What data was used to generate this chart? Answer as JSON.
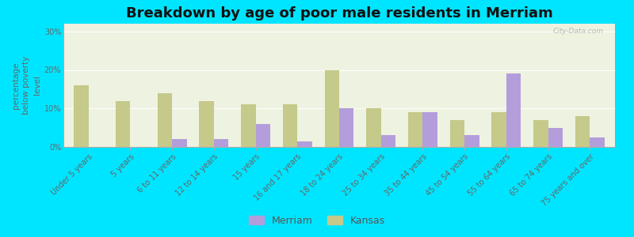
{
  "title": "Breakdown by age of poor male residents in Merriam",
  "ylabel": "percentage\nbelow poverty\nlevel",
  "categories": [
    "Under 5 years",
    "5 years",
    "6 to 11 years",
    "12 to 14 years",
    "15 years",
    "16 and 17 years",
    "18 to 24 years",
    "25 to 34 years",
    "35 to 44 years",
    "45 to 54 years",
    "55 to 64 years",
    "65 to 74 years",
    "75 years and over"
  ],
  "merriam_values": [
    0,
    0,
    2.0,
    2.0,
    6.0,
    1.5,
    10.0,
    3.0,
    9.0,
    3.0,
    19.0,
    5.0,
    2.5
  ],
  "kansas_values": [
    16.0,
    12.0,
    14.0,
    12.0,
    11.0,
    11.0,
    20.0,
    10.0,
    9.0,
    7.0,
    9.0,
    7.0,
    8.0
  ],
  "merriam_color": "#b39ddb",
  "kansas_color": "#c5c98a",
  "background_color": "#00e5ff",
  "plot_bg_color": "#eef2e0",
  "ylim": [
    0,
    32
  ],
  "yticks": [
    0,
    10,
    20,
    30
  ],
  "ytick_labels": [
    "0%",
    "10%",
    "20%",
    "30%"
  ],
  "title_fontsize": 13,
  "label_fontsize": 7.0,
  "ylabel_fontsize": 7.5,
  "bar_width": 0.35,
  "watermark": "City-Data.com"
}
